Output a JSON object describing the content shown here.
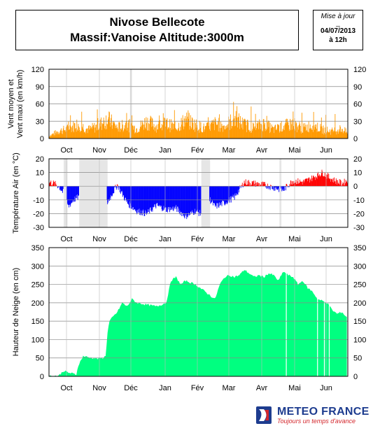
{
  "header": {
    "title_line1": "Nivose Bellecote",
    "title_line2": "Massif:Vanoise Altitude:3000m",
    "update_label": "Mise à jour",
    "update_dash": "_",
    "update_date": "04/07/2013",
    "update_time": "à 12h"
  },
  "logo": {
    "name": "METEO FRANCE",
    "tagline": "Toujours un temps d'avance"
  },
  "colors": {
    "wind": "#ff9900",
    "temp_positive": "#ff0000",
    "temp_negative": "#0000ff",
    "snow": "#00ff80",
    "missing": "#e6e6e6",
    "grid": "#888888"
  },
  "chart_data": [
    {
      "type": "area",
      "ylabel_line1": "Vent moyen et",
      "ylabel_line2": "Vent maxi (en km/h)",
      "ylim": [
        0,
        120
      ],
      "yticks": [
        0,
        30,
        60,
        90,
        120
      ],
      "months": [
        "Oct",
        "Nov",
        "Déc",
        "Jan",
        "Fév",
        "Mar",
        "Avr",
        "Mai",
        "Jun"
      ],
      "grid": true,
      "missing_ranges": [
        [
          83,
          84
        ]
      ],
      "x": [
        0,
        10,
        20,
        30,
        40,
        50,
        60,
        70,
        80,
        90,
        100,
        110,
        120,
        130,
        140,
        150,
        160,
        170,
        180,
        190,
        200,
        210,
        220,
        230,
        240,
        250,
        260,
        270,
        280,
        290,
        300,
        305
      ],
      "series": [
        {
          "values": [
            5,
            15,
            20,
            30,
            18,
            25,
            40,
            22,
            28,
            20,
            35,
            25,
            30,
            22,
            38,
            28,
            20,
            30,
            25,
            40,
            28,
            22,
            30,
            18,
            25,
            30,
            20,
            28,
            18,
            15,
            20,
            12
          ]
        }
      ]
    },
    {
      "type": "area",
      "ylabel": "Température Air (en °C)",
      "ylim": [
        -30,
        20
      ],
      "yticks": [
        -30,
        -20,
        -10,
        0,
        10,
        20
      ],
      "months": [
        "Oct",
        "Nov",
        "Déc",
        "Jan",
        "Fév",
        "Mar",
        "Avr",
        "Mai",
        "Jun"
      ],
      "grid": true,
      "missing_ranges": [
        [
          15,
          18
        ],
        [
          31,
          59
        ],
        [
          156,
          164
        ],
        [
          236,
          237
        ]
      ],
      "x": [
        0,
        5,
        10,
        15,
        20,
        25,
        30,
        60,
        65,
        70,
        80,
        90,
        100,
        110,
        120,
        130,
        140,
        150,
        155,
        165,
        170,
        180,
        190,
        200,
        210,
        220,
        230,
        240,
        245,
        250,
        260,
        270,
        280,
        290,
        300,
        305
      ],
      "series": [
        {
          "values": [
            3,
            2,
            0,
            -5,
            -15,
            -10,
            -8,
            -12,
            -5,
            1,
            -12,
            -18,
            -20,
            -14,
            -17,
            -16,
            -22,
            -18,
            -20,
            -10,
            -15,
            -12,
            -8,
            3,
            2,
            1,
            -1,
            -3,
            1,
            4,
            3,
            6,
            10,
            5,
            2,
            4
          ]
        }
      ]
    },
    {
      "type": "area",
      "ylabel": "Hauteur de Neige (en cm)",
      "ylim": [
        0,
        350
      ],
      "yticks": [
        0,
        50,
        100,
        150,
        200,
        250,
        300,
        350
      ],
      "months": [
        "Oct",
        "Nov",
        "Déc",
        "Jan",
        "Fév",
        "Mar",
        "Avr",
        "Mai",
        "Jun"
      ],
      "grid": true,
      "x": [
        0,
        10,
        15,
        20,
        28,
        30,
        35,
        40,
        45,
        50,
        55,
        58,
        60,
        62,
        65,
        70,
        75,
        80,
        85,
        90,
        100,
        110,
        120,
        125,
        130,
        135,
        140,
        150,
        160,
        170,
        175,
        180,
        185,
        190,
        195,
        200,
        205,
        210,
        215,
        220,
        225,
        230,
        235,
        240,
        245,
        250,
        255,
        260,
        265,
        270,
        275,
        280,
        285,
        290,
        295,
        300,
        305
      ],
      "series": [
        {
          "values": [
            0,
            2,
            15,
            10,
            5,
            30,
            55,
            52,
            50,
            48,
            50,
            55,
            120,
            150,
            160,
            175,
            200,
            190,
            210,
            200,
            195,
            190,
            200,
            260,
            270,
            250,
            260,
            250,
            230,
            210,
            250,
            270,
            275,
            270,
            275,
            290,
            280,
            270,
            275,
            270,
            280,
            275,
            260,
            285,
            275,
            270,
            250,
            260,
            240,
            230,
            210,
            205,
            200,
            180,
            170,
            175,
            160
          ]
        }
      ]
    }
  ]
}
